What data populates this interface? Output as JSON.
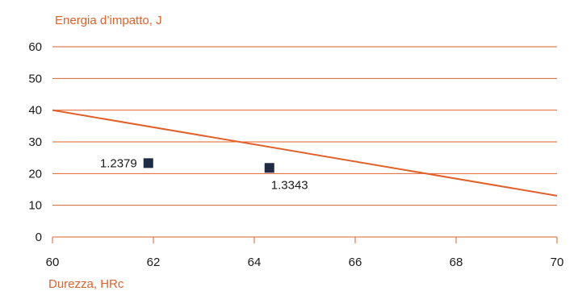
{
  "chart_data": {
    "type": "scatter",
    "xlabel": "Durezza, HRc",
    "ylabel": "Energia d’impatto, J",
    "xlim": [
      60,
      70
    ],
    "ylim": [
      0,
      60
    ],
    "x_ticks": [
      "60",
      "62",
      "64",
      "66",
      "68",
      "70"
    ],
    "y_ticks": [
      "0",
      "10",
      "20",
      "30",
      "40",
      "50",
      "60"
    ],
    "grid": "horizontal",
    "series": [
      {
        "type": "line",
        "x": [
          60,
          70
        ],
        "y": [
          40,
          13
        ]
      },
      {
        "type": "scatter",
        "points": [
          {
            "x": 61.9,
            "y": 23.3,
            "label": "1.2379",
            "label_side": "left"
          },
          {
            "x": 64.3,
            "y": 21.8,
            "label": "1.3343",
            "label_side": "below"
          }
        ]
      }
    ],
    "colors": {
      "accent": "#e0612a",
      "marker": "#1f2a44",
      "text": "#1a1a1a"
    }
  }
}
